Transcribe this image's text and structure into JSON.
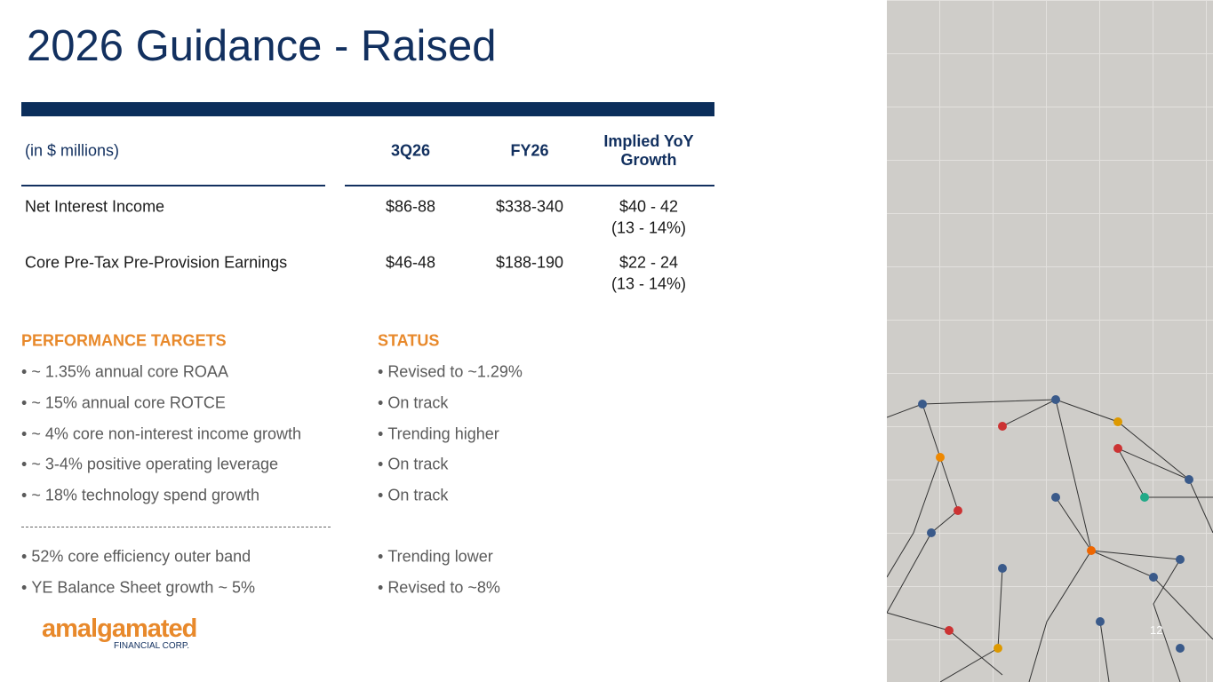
{
  "header": {
    "title": "2026 Guidance - Raised"
  },
  "table": {
    "columns": [
      "(in $ millions)",
      "3Q26",
      "FY26",
      "Implied YoY Growth"
    ],
    "rows": [
      [
        "Net Interest Income",
        "$86-88",
        "$338-340",
        [
          "$40 - 42",
          "(13 - 14%)"
        ]
      ],
      [
        "Core Pre-Tax Pre-Provision Earnings",
        "$46-48",
        "$188-190",
        [
          "$22 - 24",
          "(13 - 14%)"
        ]
      ]
    ]
  },
  "targets": {
    "heading": "PERFORMANCE TARGETS",
    "items": [
      "~ 1.35% annual core ROAA",
      "~ 15% annual core ROTCE",
      "~ 4% core non-interest income growth",
      "~ 3-4% positive operating leverage",
      "~ 18% technology spend growth"
    ],
    "extra_items": [
      "52% core efficiency outer band",
      "YE Balance Sheet growth ~ 5%"
    ]
  },
  "status": {
    "heading": "STATUS",
    "items": [
      "Revised to ~1.29%",
      "On track",
      "Trending higher",
      "On track",
      "On track"
    ],
    "extra_items": [
      "Trending lower",
      "Revised to ~8%"
    ]
  },
  "logo": {
    "name": "amalgamated",
    "tagline": "FINANCIAL CORP."
  },
  "page_number": "12"
}
